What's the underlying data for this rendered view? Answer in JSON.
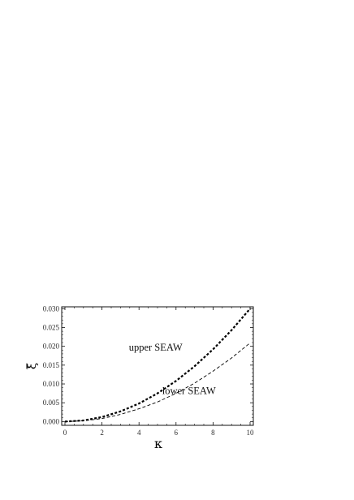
{
  "chart_data": {
    "type": "line",
    "xlabel": "κ",
    "ylabel": "ξ̃",
    "xlim": [
      0,
      10
    ],
    "ylim": [
      -0.001,
      0.0305
    ],
    "x_ticks": [
      0,
      2,
      4,
      6,
      8,
      10
    ],
    "y_ticks": [
      0.0,
      0.005,
      0.01,
      0.015,
      0.02,
      0.025,
      0.03
    ],
    "x_tick_labels": [
      "0",
      "2",
      "4",
      "6",
      "8",
      "10"
    ],
    "y_tick_labels": [
      "0.000",
      "0.005",
      "0.010",
      "0.015",
      "0.020",
      "0.025",
      "0.030"
    ],
    "grid": false,
    "series": [
      {
        "name": "upper SEAW",
        "style": "dashed-thick",
        "color": "#000000",
        "x": [
          0,
          1,
          2,
          3,
          4,
          5,
          6,
          7,
          8,
          9,
          10
        ],
        "values": [
          0.0,
          0.0003,
          0.0012,
          0.0027,
          0.0048,
          0.0075,
          0.0108,
          0.0147,
          0.0192,
          0.0243,
          0.03
        ]
      },
      {
        "name": "lower SEAW",
        "style": "dashed-thin",
        "color": "#000000",
        "x": [
          0,
          1,
          2,
          3,
          4,
          5,
          6,
          7,
          8,
          9,
          10
        ],
        "values": [
          0.0,
          0.0002,
          0.0008,
          0.0019,
          0.0034,
          0.0052,
          0.0075,
          0.0102,
          0.0134,
          0.0169,
          0.0209
        ]
      }
    ],
    "annotations": [
      {
        "text": "upper SEAW",
        "x": 4.9,
        "y": 0.0188
      },
      {
        "text": "lower SEAW",
        "x": 6.7,
        "y": 0.0073
      }
    ]
  }
}
